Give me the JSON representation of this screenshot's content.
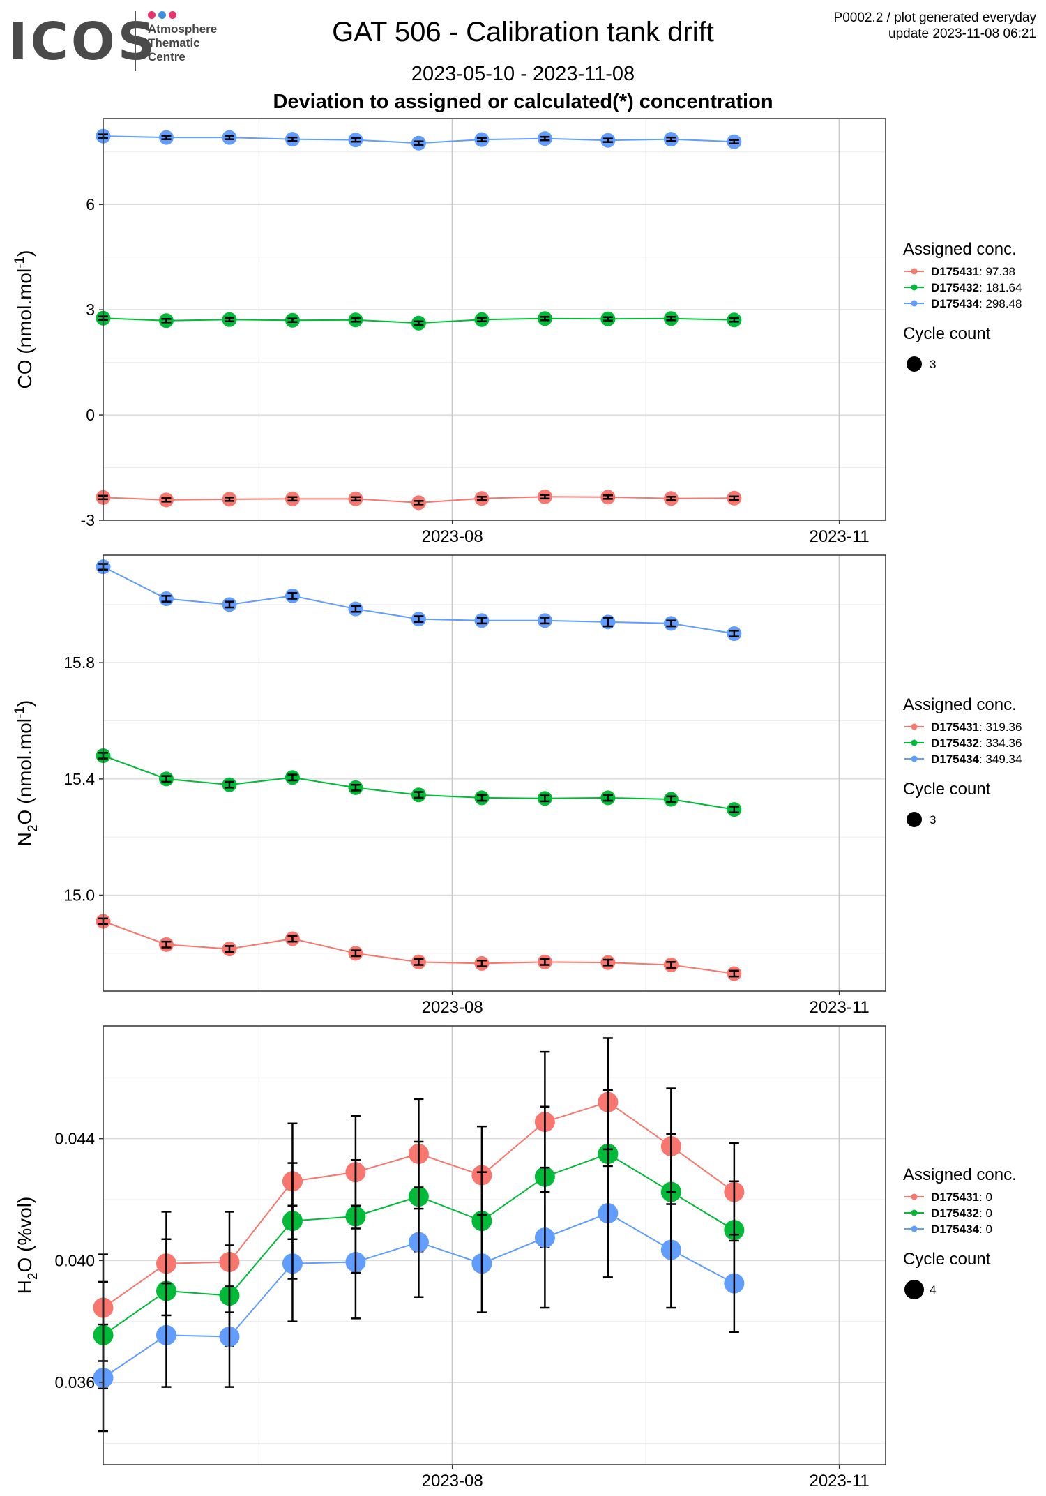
{
  "header": {
    "logo_word": "ICOS",
    "logo_lines": [
      "Atmosphere",
      "Thematic",
      "Centre"
    ],
    "title": "GAT 506 - Calibration tank drift",
    "date_range": "2023-05-10 - 2023-11-08",
    "subtitle": "Deviation to assigned or calculated(*) concentration",
    "info_line1": "P0002.2 / plot generated everyday",
    "info_line2": "update  2023-11-08 06:21"
  },
  "colors": {
    "D175431": "#F8766D",
    "D175432": "#00BA38",
    "D175434": "#619CFF",
    "logo_dots": [
      "#E8336B",
      "#3E8EDE",
      "#E8336B"
    ]
  },
  "chart_data": [
    {
      "type": "line",
      "ylabel": "CO (nmol.mol",
      "ylabel_sup": "-1",
      "ylabel_tail": ")",
      "yticks": [
        -3,
        0,
        3,
        6
      ],
      "ytick_labels": [
        "-3",
        "0",
        "3",
        "6"
      ],
      "ylim": [
        -3.0,
        8.45
      ],
      "xlim": [
        "2023-05-10",
        "2023-11-12"
      ],
      "xticks": [
        "2023-08-01",
        "2023-11-01"
      ],
      "xtick_labels": [
        "2023-08",
        "2023-11"
      ],
      "x": [
        "2023-05-10",
        "2023-05-25",
        "2023-06-09",
        "2023-06-24",
        "2023-07-09",
        "2023-07-24",
        "2023-08-08",
        "2023-08-23",
        "2023-09-07",
        "2023-09-22",
        "2023-10-07"
      ],
      "series": [
        {
          "name": "D175431",
          "legend_value": "97.38",
          "color_key": "D175431",
          "values": [
            -2.35,
            -2.42,
            -2.4,
            -2.39,
            -2.39,
            -2.5,
            -2.38,
            -2.33,
            -2.34,
            -2.38,
            -2.37
          ],
          "err": [
            0.05,
            0.05,
            0.05,
            0.05,
            0.05,
            0.05,
            0.05,
            0.05,
            0.05,
            0.05,
            0.05
          ]
        },
        {
          "name": "D175432",
          "legend_value": "181.64",
          "color_key": "D175432",
          "values": [
            2.76,
            2.69,
            2.72,
            2.7,
            2.71,
            2.62,
            2.72,
            2.75,
            2.74,
            2.75,
            2.71
          ],
          "err": [
            0.05,
            0.05,
            0.05,
            0.05,
            0.05,
            0.05,
            0.05,
            0.05,
            0.05,
            0.05,
            0.05
          ]
        },
        {
          "name": "D175434",
          "legend_value": "298.48",
          "color_key": "D175434",
          "values": [
            7.95,
            7.91,
            7.91,
            7.86,
            7.84,
            7.75,
            7.85,
            7.88,
            7.83,
            7.86,
            7.79
          ],
          "err": [
            0.05,
            0.05,
            0.05,
            0.05,
            0.05,
            0.05,
            0.05,
            0.05,
            0.05,
            0.05,
            0.05
          ]
        }
      ],
      "legend_title": "Assigned conc.",
      "size_title": "Cycle count",
      "size_value": "3",
      "grid": true,
      "legend": "right"
    },
    {
      "type": "line",
      "ylabel": "N",
      "ylabel_sub": "2",
      "ylabel_tail": "O (nmol.mol",
      "ylabel_sup": "-1",
      "ylabel_tail2": ")",
      "yticks": [
        15.0,
        15.4,
        15.8
      ],
      "ytick_labels": [
        "15.0",
        "15.4",
        "15.8"
      ],
      "ylim": [
        14.67,
        16.17
      ],
      "xlim": [
        "2023-05-10",
        "2023-11-12"
      ],
      "xticks": [
        "2023-08-01",
        "2023-11-01"
      ],
      "xtick_labels": [
        "2023-08",
        "2023-11"
      ],
      "x": [
        "2023-05-10",
        "2023-05-25",
        "2023-06-09",
        "2023-06-24",
        "2023-07-09",
        "2023-07-24",
        "2023-08-08",
        "2023-08-23",
        "2023-09-07",
        "2023-09-22",
        "2023-10-07"
      ],
      "series": [
        {
          "name": "D175431",
          "legend_value": "319.36",
          "color_key": "D175431",
          "values": [
            14.91,
            14.83,
            14.815,
            14.85,
            14.8,
            14.77,
            14.765,
            14.77,
            14.768,
            14.76,
            14.73
          ],
          "err": [
            0.01,
            0.01,
            0.01,
            0.01,
            0.01,
            0.01,
            0.01,
            0.01,
            0.01,
            0.01,
            0.01
          ]
        },
        {
          "name": "D175432",
          "legend_value": "334.36",
          "color_key": "D175432",
          "values": [
            15.48,
            15.4,
            15.38,
            15.405,
            15.37,
            15.345,
            15.335,
            15.333,
            15.335,
            15.33,
            15.295
          ],
          "err": [
            0.01,
            0.01,
            0.01,
            0.01,
            0.01,
            0.01,
            0.01,
            0.01,
            0.01,
            0.01,
            0.01
          ]
        },
        {
          "name": "D175434",
          "legend_value": "349.34",
          "color_key": "D175434",
          "values": [
            16.13,
            16.02,
            16.0,
            16.03,
            15.985,
            15.95,
            15.945,
            15.945,
            15.94,
            15.935,
            15.9
          ],
          "err": [
            0.01,
            0.01,
            0.01,
            0.01,
            0.01,
            0.01,
            0.01,
            0.01,
            0.015,
            0.01,
            0.01
          ]
        }
      ],
      "legend_title": "Assigned conc.",
      "size_title": "Cycle count",
      "size_value": "3",
      "grid": true,
      "legend": "right"
    },
    {
      "type": "line",
      "ylabel": "H",
      "ylabel_sub": "2",
      "ylabel_tail": "O (%vol)",
      "yticks": [
        0.036,
        0.04,
        0.044
      ],
      "ytick_labels": [
        "0.036",
        "0.040",
        "0.044"
      ],
      "ylim": [
        0.0333,
        0.0477
      ],
      "xlim": [
        "2023-05-10",
        "2023-11-12"
      ],
      "xticks": [
        "2023-08-01",
        "2023-11-01"
      ],
      "xtick_labels": [
        "2023-08",
        "2023-11"
      ],
      "x": [
        "2023-05-10",
        "2023-05-25",
        "2023-06-09",
        "2023-06-24",
        "2023-07-09",
        "2023-07-24",
        "2023-08-08",
        "2023-08-23",
        "2023-09-07",
        "2023-09-22",
        "2023-10-07"
      ],
      "series": [
        {
          "name": "D175431",
          "legend_value": "0",
          "color_key": "D175431",
          "values": [
            0.03845,
            0.0399,
            0.03995,
            0.0426,
            0.0429,
            0.0435,
            0.0428,
            0.04455,
            0.0452,
            0.04375,
            0.04225
          ],
          "err": [
            0.00175,
            0.0017,
            0.00165,
            0.0019,
            0.00185,
            0.0018,
            0.0016,
            0.0023,
            0.0021,
            0.0019,
            0.0016
          ]
        },
        {
          "name": "D175432",
          "legend_value": "0",
          "color_key": "D175432",
          "values": [
            0.03755,
            0.039,
            0.03885,
            0.0413,
            0.04145,
            0.0421,
            0.0413,
            0.04275,
            0.0435,
            0.04225,
            0.041
          ],
          "err": [
            0.00175,
            0.0017,
            0.00165,
            0.0019,
            0.00185,
            0.0018,
            0.0016,
            0.0023,
            0.0021,
            0.0019,
            0.0016
          ]
        },
        {
          "name": "D175434",
          "legend_value": "0",
          "color_key": "D175434",
          "values": [
            0.03615,
            0.03755,
            0.0375,
            0.0399,
            0.03995,
            0.0406,
            0.0399,
            0.04075,
            0.04155,
            0.04035,
            0.03925
          ],
          "err": [
            0.00175,
            0.0017,
            0.00165,
            0.0019,
            0.00185,
            0.0018,
            0.0016,
            0.0023,
            0.0021,
            0.0019,
            0.0016
          ]
        }
      ],
      "legend_title": "Assigned conc.",
      "size_title": "Cycle count",
      "size_value": "4",
      "grid": true,
      "legend": "right"
    }
  ]
}
